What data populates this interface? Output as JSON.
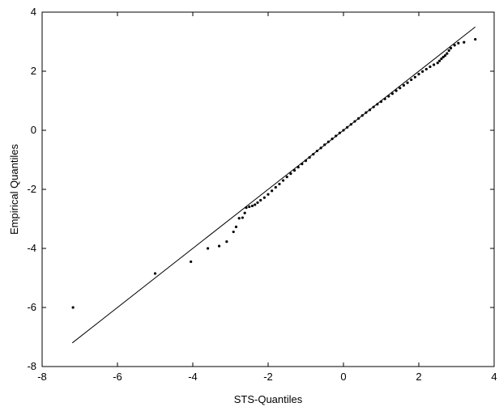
{
  "chart_data": {
    "type": "scatter",
    "title": "",
    "xlabel": "STS-Quantiles",
    "ylabel": "Empirical Quantiles",
    "xlim": [
      -8,
      4
    ],
    "ylim": [
      -8,
      4
    ],
    "xticks": [
      -8,
      -6,
      -4,
      -2,
      0,
      2,
      4
    ],
    "yticks": [
      -8,
      -6,
      -4,
      -2,
      0,
      2,
      4
    ],
    "xtick_labels": [
      "-8",
      "-6",
      "-4",
      "-2",
      "0",
      "2",
      "4"
    ],
    "ytick_labels": [
      "-8",
      "-6",
      "-4",
      "-2",
      "0",
      "2",
      "4"
    ],
    "grid": false,
    "reference_line": {
      "x": [
        -7.2,
        3.5
      ],
      "y": [
        -7.2,
        3.5
      ]
    },
    "series": [
      {
        "points": [
          [
            -7.18,
            -6.0
          ],
          [
            -5.0,
            -4.85
          ],
          [
            -4.05,
            -4.45
          ],
          [
            -3.6,
            -4.0
          ],
          [
            -3.3,
            -3.92
          ],
          [
            -3.1,
            -3.77
          ],
          [
            -2.92,
            -3.44
          ],
          [
            -2.85,
            -3.27
          ],
          [
            -2.77,
            -2.98
          ],
          [
            -2.68,
            -2.96
          ],
          [
            -2.62,
            -2.8
          ],
          [
            -2.58,
            -2.62
          ],
          [
            -2.5,
            -2.59
          ],
          [
            -2.42,
            -2.56
          ],
          [
            -2.35,
            -2.52
          ],
          [
            -2.28,
            -2.45
          ],
          [
            -2.2,
            -2.37
          ],
          [
            -2.1,
            -2.28
          ],
          [
            -2.0,
            -2.17
          ],
          [
            -1.9,
            -2.05
          ],
          [
            -1.8,
            -1.93
          ],
          [
            -1.7,
            -1.82
          ],
          [
            -1.6,
            -1.7
          ],
          [
            -1.5,
            -1.58
          ],
          [
            -1.4,
            -1.47
          ],
          [
            -1.3,
            -1.36
          ],
          [
            -1.2,
            -1.25
          ],
          [
            -1.1,
            -1.14
          ],
          [
            -1.0,
            -1.03
          ],
          [
            -0.9,
            -0.92
          ],
          [
            -0.8,
            -0.81
          ],
          [
            -0.7,
            -0.7
          ],
          [
            -0.6,
            -0.6
          ],
          [
            -0.5,
            -0.49
          ],
          [
            -0.4,
            -0.39
          ],
          [
            -0.3,
            -0.29
          ],
          [
            -0.2,
            -0.19
          ],
          [
            -0.1,
            -0.09
          ],
          [
            0.0,
            0.0
          ],
          [
            0.1,
            0.1
          ],
          [
            0.2,
            0.2
          ],
          [
            0.3,
            0.3
          ],
          [
            0.4,
            0.4
          ],
          [
            0.5,
            0.5
          ],
          [
            0.6,
            0.6
          ],
          [
            0.7,
            0.69
          ],
          [
            0.8,
            0.79
          ],
          [
            0.9,
            0.88
          ],
          [
            1.0,
            0.97
          ],
          [
            1.1,
            1.06
          ],
          [
            1.2,
            1.15
          ],
          [
            1.3,
            1.24
          ],
          [
            1.4,
            1.34
          ],
          [
            1.5,
            1.43
          ],
          [
            1.6,
            1.52
          ],
          [
            1.7,
            1.61
          ],
          [
            1.8,
            1.71
          ],
          [
            1.9,
            1.8
          ],
          [
            2.0,
            1.9
          ],
          [
            2.1,
            1.99
          ],
          [
            2.2,
            2.07
          ],
          [
            2.3,
            2.15
          ],
          [
            2.4,
            2.22
          ],
          [
            2.5,
            2.28
          ],
          [
            2.55,
            2.35
          ],
          [
            2.6,
            2.42
          ],
          [
            2.65,
            2.48
          ],
          [
            2.7,
            2.53
          ],
          [
            2.75,
            2.6
          ],
          [
            2.8,
            2.7
          ],
          [
            2.85,
            2.78
          ],
          [
            2.95,
            2.88
          ],
          [
            3.05,
            2.95
          ],
          [
            3.2,
            2.98
          ],
          [
            3.5,
            3.08
          ]
        ]
      }
    ]
  }
}
